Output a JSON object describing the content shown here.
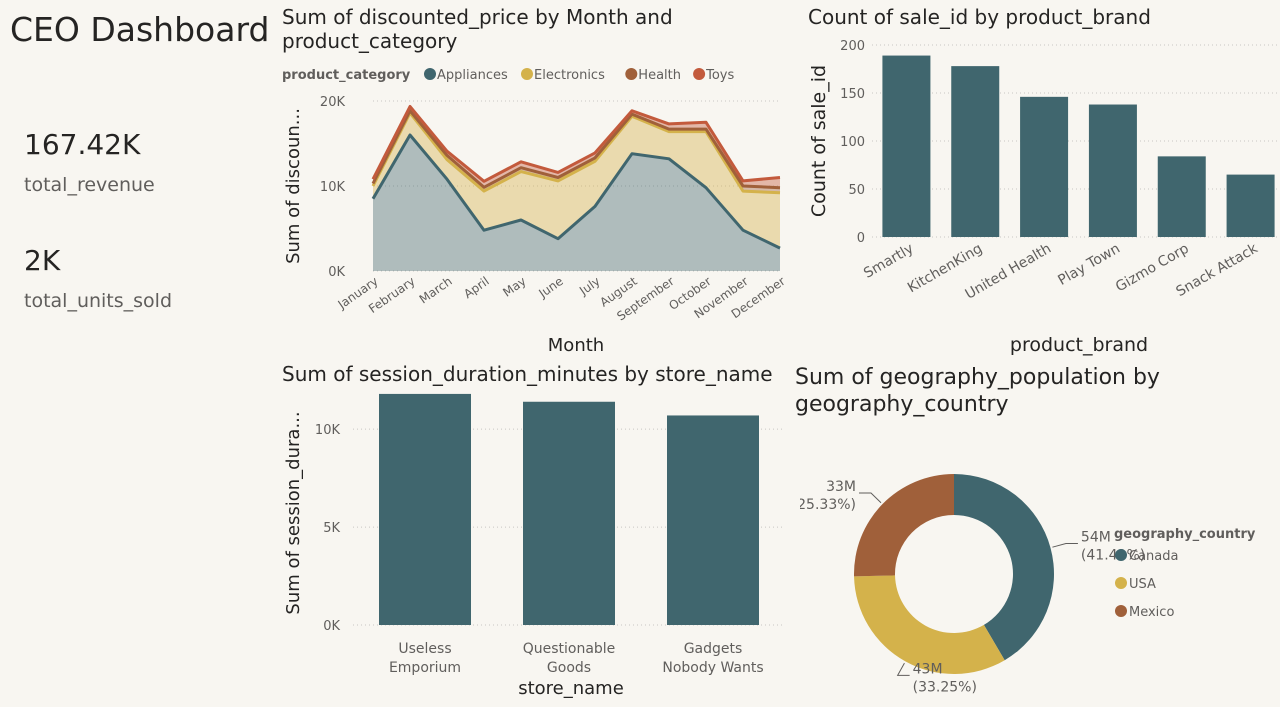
{
  "dashboard": {
    "title": "CEO Dashboard",
    "kpis": [
      {
        "value": "167.42K",
        "label": "total_revenue"
      },
      {
        "value": "2K",
        "label": "total_units_sold"
      }
    ]
  },
  "colors": {
    "teal": "#40666e",
    "gold": "#d4b24b",
    "brown": "#a0603a",
    "orange": "#c35a3c",
    "background": "#f8f6f1"
  },
  "chart_data": [
    {
      "id": "area",
      "type": "area",
      "stacked": true,
      "title": "Sum of discounted_price by Month and product_category",
      "xlabel": "Month",
      "ylabel": "Sum of discoun...",
      "ylim": [
        0,
        20000
      ],
      "yticks": [
        0,
        10000,
        20000
      ],
      "ytick_labels": [
        "0K",
        "10K",
        "20K"
      ],
      "legend_title": "product_category",
      "legend_position": "top",
      "categories": [
        "January",
        "February",
        "March",
        "April",
        "May",
        "June",
        "July",
        "August",
        "September",
        "October",
        "November",
        "December"
      ],
      "series": [
        {
          "name": "Appliances",
          "color": "#40666e",
          "values": [
            8500,
            16000,
            10800,
            4800,
            6000,
            3800,
            7600,
            13800,
            13200,
            9800,
            4800,
            2700
          ]
        },
        {
          "name": "Electronics",
          "color": "#d4b24b",
          "values": [
            1500,
            2600,
            2300,
            4600,
            5700,
            6800,
            5300,
            4400,
            3200,
            6600,
            4600,
            6500
          ]
        },
        {
          "name": "Health",
          "color": "#a0603a",
          "values": [
            300,
            250,
            500,
            450,
            450,
            400,
            400,
            250,
            300,
            300,
            600,
            600
          ]
        },
        {
          "name": "Toys",
          "color": "#c35a3c",
          "values": [
            500,
            500,
            500,
            700,
            700,
            600,
            600,
            400,
            600,
            800,
            600,
            1200
          ]
        }
      ]
    },
    {
      "id": "brand",
      "type": "bar",
      "title": "Count of sale_id by product_brand",
      "xlabel": "product_brand",
      "ylabel": "Count of sale_id",
      "ylim": [
        0,
        200
      ],
      "yticks": [
        0,
        50,
        100,
        150,
        200
      ],
      "ytick_labels": [
        "0",
        "50",
        "100",
        "150",
        "200"
      ],
      "categories": [
        "Smartly",
        "KitchenKing",
        "United Health",
        "Play Town",
        "Gizmo Corp",
        "Snack Attack"
      ],
      "values": [
        189,
        178,
        146,
        138,
        84,
        65
      ],
      "color": "#40666e"
    },
    {
      "id": "session",
      "type": "bar",
      "title": "Sum of session_duration_minutes by store_name",
      "xlabel": "store_name",
      "ylabel": "Sum of session_dura...",
      "ylim": [
        0,
        12000
      ],
      "yticks": [
        0,
        5000,
        10000
      ],
      "ytick_labels": [
        "0K",
        "5K",
        "10K"
      ],
      "categories": [
        [
          "Useless",
          "Emporium"
        ],
        [
          "Questionable",
          "Goods"
        ],
        [
          "Gadgets",
          "Nobody Wants"
        ]
      ],
      "values": [
        11800,
        11400,
        10700
      ],
      "color": "#40666e"
    },
    {
      "id": "pie",
      "type": "pie",
      "donut": true,
      "title": "Sum of geography_population by geography_country",
      "legend_title": "geography_country",
      "legend_position": "right",
      "slices": [
        {
          "name": "Canada",
          "value": 54,
          "value_label": "54M",
          "pct_label": "(41.42%)",
          "color": "#40666e"
        },
        {
          "name": "USA",
          "value": 43,
          "value_label": "43M",
          "pct_label": "(33.25%)",
          "color": "#d4b24b"
        },
        {
          "name": "Mexico",
          "value": 33,
          "value_label": "33M",
          "pct_label": "(25.33%)",
          "color": "#a0603a"
        }
      ]
    }
  ]
}
